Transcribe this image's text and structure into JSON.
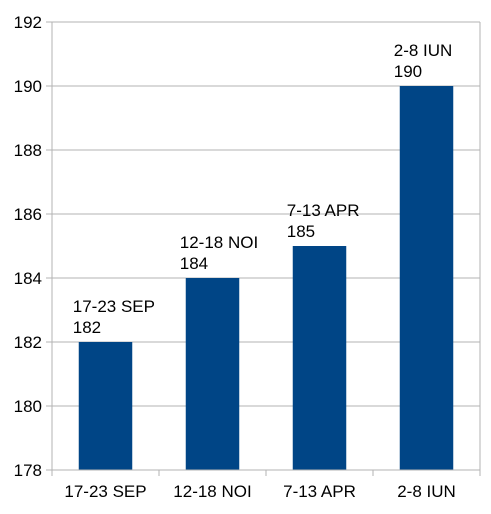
{
  "chart_data": {
    "type": "bar",
    "title": "",
    "xlabel": "",
    "ylabel": "",
    "categories": [
      "17-23 SEP",
      "12-18 NOI",
      "7-13 APR",
      "2-8 IUN"
    ],
    "values": [
      182,
      184,
      185,
      190
    ],
    "ylim": [
      178,
      192
    ],
    "yticks": [
      "178",
      "180",
      "182",
      "184",
      "186",
      "188",
      "190",
      "192"
    ],
    "grid": "horizontal",
    "legend": "none",
    "bar_color": "#004586",
    "data_labels": [
      {
        "category": "17-23 SEP",
        "value": "182"
      },
      {
        "category": "12-18 NOI",
        "value": "184"
      },
      {
        "category": "7-13 APR",
        "value": "185"
      },
      {
        "category": "2-8 IUN",
        "value": "190"
      }
    ]
  }
}
